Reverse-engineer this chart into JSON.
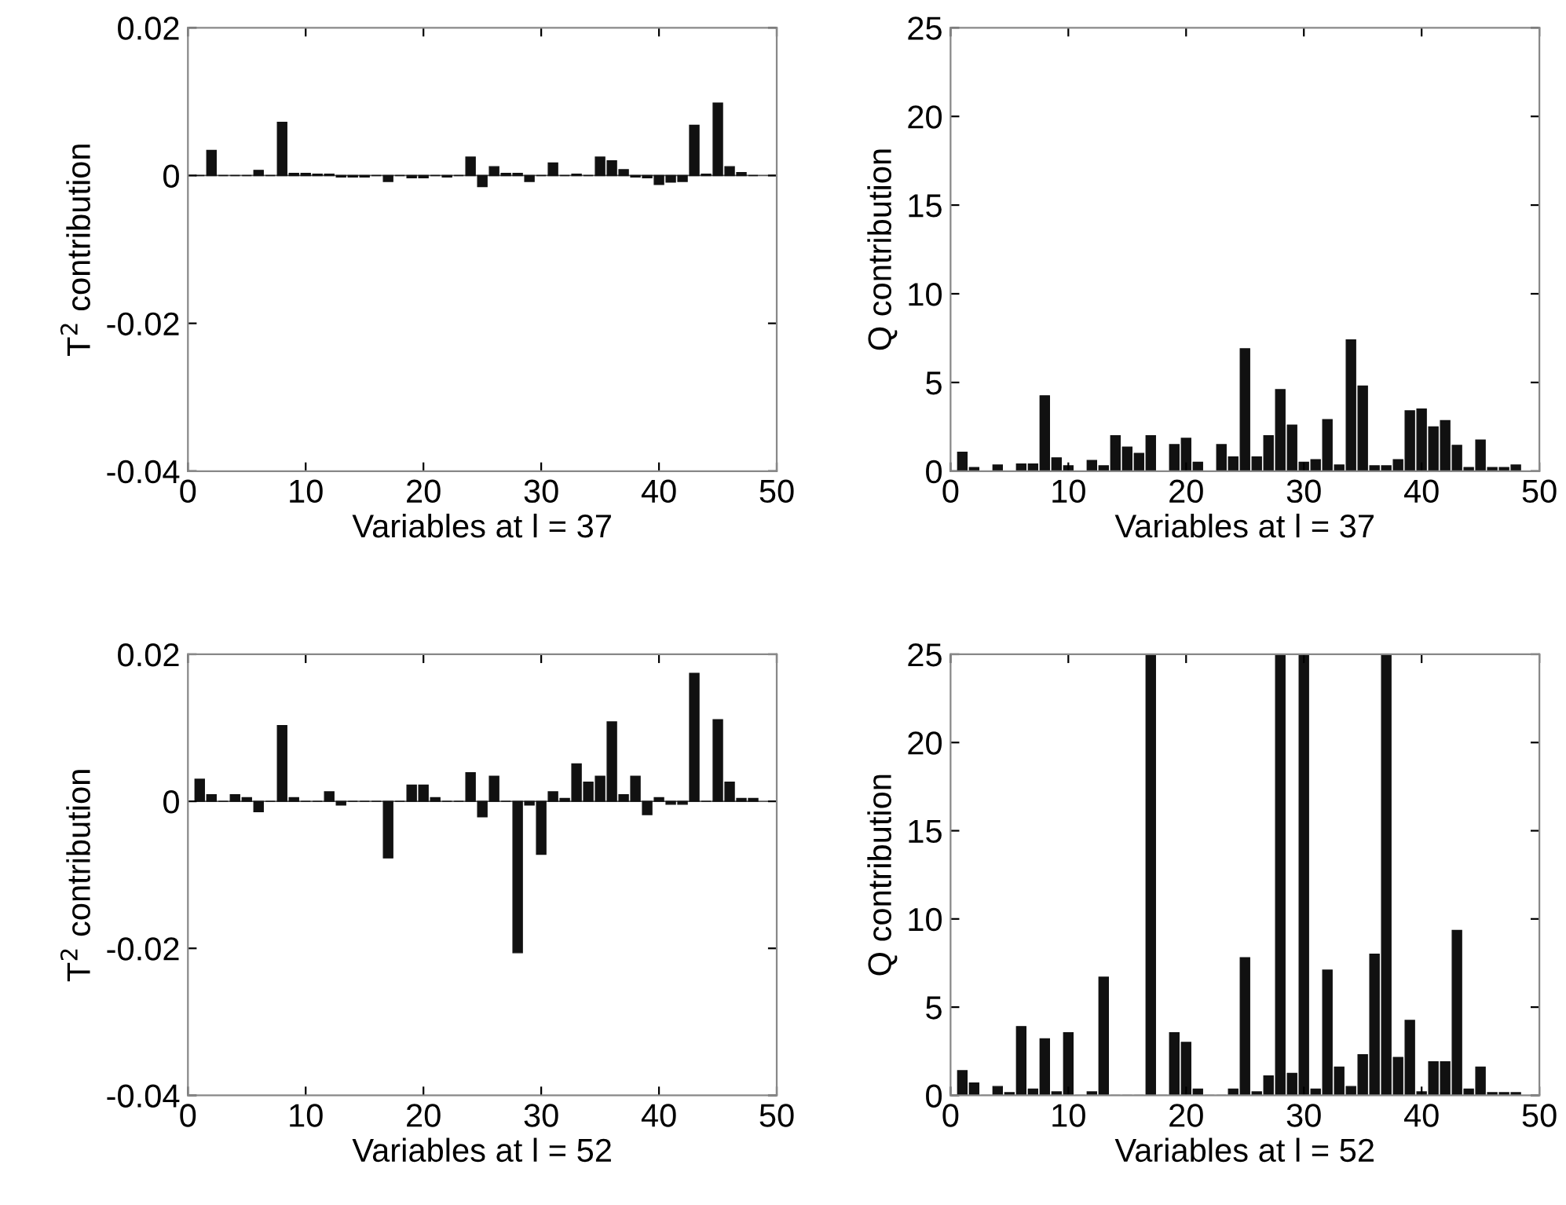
{
  "chart_data": [
    {
      "type": "bar",
      "xlabel": "Variables at l = 37",
      "ylabel": "T$^{2}$ contribution",
      "color": "#111111",
      "x": [
        1,
        2,
        3,
        4,
        5,
        6,
        7,
        8,
        9,
        10,
        11,
        12,
        13,
        14,
        15,
        16,
        17,
        18,
        19,
        20,
        21,
        22,
        23,
        24,
        25,
        26,
        27,
        28,
        29,
        30,
        31,
        32,
        33,
        34,
        35,
        36,
        37,
        38,
        39,
        40,
        41,
        42,
        43,
        44,
        45,
        46,
        47,
        48
      ],
      "values": [
        0,
        0.0034,
        0,
        0,
        0,
        0.0007,
        0,
        0.0072,
        0.0003,
        0.0003,
        0.0002,
        0.0002,
        -0.0002,
        -0.0002,
        -0.0002,
        0,
        -0.0008,
        0,
        -0.0003,
        -0.0003,
        0,
        -0.0002,
        0,
        0.0025,
        -0.0015,
        0.0012,
        0.0003,
        0.0003,
        -0.0008,
        0,
        0.0017,
        0,
        0.0002,
        0,
        0.0025,
        0.002,
        0.0008,
        -0.0002,
        -0.0003,
        -0.0012,
        -0.0009,
        -0.0008,
        0.0068,
        0.0002,
        0.0098,
        0.0012,
        0.0004,
        0
      ],
      "xlim": [
        0,
        50
      ],
      "xticks": [
        0,
        10,
        20,
        30,
        40,
        50
      ],
      "ylim": [
        -0.04,
        0.02
      ],
      "yticks": [
        -0.04,
        -0.02,
        0,
        0.02
      ],
      "ref_lines": [
        {
          "axis": "y",
          "value": 0,
          "color": "#555555"
        }
      ],
      "grid": false,
      "legend": false
    },
    {
      "type": "bar",
      "xlabel": "Variables at l = 37",
      "ylabel": "Q contribution",
      "color": "#111111",
      "x": [
        1,
        2,
        3,
        4,
        5,
        6,
        7,
        8,
        9,
        10,
        11,
        12,
        13,
        14,
        15,
        16,
        17,
        18,
        19,
        20,
        21,
        22,
        23,
        24,
        25,
        26,
        27,
        28,
        29,
        30,
        31,
        32,
        33,
        34,
        35,
        36,
        37,
        38,
        39,
        40,
        41,
        42,
        43,
        44,
        45,
        46,
        47,
        48
      ],
      "values": [
        1.07,
        0.2,
        0,
        0.35,
        0,
        0.4,
        0.4,
        4.25,
        0.75,
        0.3,
        0,
        0.6,
        0.3,
        2.0,
        1.35,
        1.0,
        2.0,
        0,
        1.5,
        1.85,
        0.5,
        0,
        1.5,
        0.8,
        6.9,
        0.8,
        2.0,
        4.6,
        2.6,
        0.5,
        0.65,
        2.9,
        0.35,
        7.4,
        4.8,
        0.3,
        0.3,
        0.65,
        3.4,
        3.5,
        2.5,
        2.85,
        1.45,
        0.2,
        1.75,
        0.2,
        0.2,
        0.35
      ],
      "xlim": [
        0,
        50
      ],
      "xticks": [
        0,
        10,
        20,
        30,
        40,
        50
      ],
      "ylim": [
        0,
        25
      ],
      "yticks": [
        0,
        5,
        10,
        15,
        20,
        25
      ],
      "grid": false,
      "legend": false
    },
    {
      "type": "bar",
      "xlabel": "Variables at l = 52",
      "ylabel": "T$^{2}$ contribution",
      "color": "#111111",
      "x": [
        1,
        2,
        3,
        4,
        5,
        6,
        7,
        8,
        9,
        10,
        11,
        12,
        13,
        14,
        15,
        16,
        17,
        18,
        19,
        20,
        21,
        22,
        23,
        24,
        25,
        26,
        27,
        28,
        29,
        30,
        31,
        32,
        33,
        34,
        35,
        36,
        37,
        38,
        39,
        40,
        41,
        42,
        43,
        44,
        45,
        46,
        47,
        48
      ],
      "values": [
        0.003,
        0.0009,
        0,
        0.0009,
        0.0005,
        -0.0014,
        0,
        0.0103,
        0.0005,
        0,
        0,
        0.0013,
        -0.0005,
        0,
        0,
        0,
        -0.0077,
        0,
        0.0022,
        0.0022,
        0.0005,
        0,
        0,
        0.0039,
        -0.0021,
        0.0034,
        0,
        -0.0206,
        -0.0005,
        -0.0072,
        0.0013,
        0.0004,
        0.0051,
        0.0026,
        0.0034,
        0.0108,
        0.0009,
        0.0034,
        -0.0018,
        0.0005,
        -0.0004,
        -0.0004,
        0.0174,
        0,
        0.0111,
        0.0026,
        0.0004,
        0.0004
      ],
      "xlim": [
        0,
        50
      ],
      "xticks": [
        0,
        10,
        20,
        30,
        40,
        50
      ],
      "ylim": [
        -0.04,
        0.02
      ],
      "yticks": [
        -0.04,
        -0.02,
        0,
        0.02
      ],
      "ref_lines": [
        {
          "axis": "y",
          "value": 0,
          "color": "#555555"
        }
      ],
      "grid": false,
      "legend": false
    },
    {
      "type": "bar",
      "xlabel": "Variables at l = 52",
      "ylabel": "Q contribution",
      "color": "#111111",
      "x": [
        1,
        2,
        3,
        4,
        5,
        6,
        7,
        8,
        9,
        10,
        11,
        12,
        13,
        14,
        15,
        16,
        17,
        18,
        19,
        20,
        21,
        22,
        23,
        24,
        25,
        26,
        27,
        28,
        29,
        30,
        31,
        32,
        33,
        34,
        35,
        36,
        37,
        38,
        39,
        40,
        41,
        42,
        43,
        44,
        45,
        46,
        47,
        48
      ],
      "values": [
        1.4,
        0.7,
        0,
        0.5,
        0.15,
        3.9,
        0.35,
        3.2,
        0.2,
        3.55,
        0,
        0.2,
        6.7,
        0,
        0,
        0,
        25,
        0,
        3.55,
        3.0,
        0.35,
        0,
        0,
        0.35,
        7.8,
        0.2,
        1.1,
        25,
        1.25,
        25,
        0.35,
        7.1,
        1.6,
        0.5,
        2.3,
        8.0,
        25,
        2.15,
        4.25,
        0.2,
        1.9,
        1.9,
        9.35,
        0.35,
        1.6,
        0.15,
        0.15,
        0.15
      ],
      "xlim": [
        0,
        50
      ],
      "xticks": [
        0,
        10,
        20,
        30,
        40,
        50
      ],
      "ylim": [
        0,
        25
      ],
      "yticks": [
        0,
        5,
        10,
        15,
        20,
        25
      ],
      "grid": false,
      "legend": false
    }
  ]
}
